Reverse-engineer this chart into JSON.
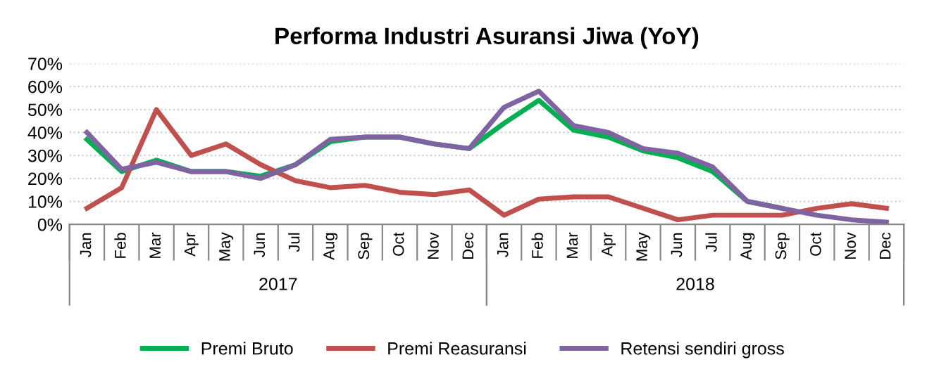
{
  "chart_data": {
    "type": "line",
    "title": "Performa Industri Asuransi Jiwa (YoY)",
    "categories": [
      "Jan",
      "Feb",
      "Mar",
      "Apr",
      "May",
      "Jun",
      "Jul",
      "Aug",
      "Sep",
      "Oct",
      "Nov",
      "Dec",
      "Jan",
      "Feb",
      "Mar",
      "Apr",
      "May",
      "Jun",
      "Jul",
      "Aug",
      "Sep",
      "Oct",
      "Nov",
      "Dec"
    ],
    "series": [
      {
        "name": "Premi Bruto",
        "color": "#00b050",
        "values": [
          37,
          23,
          28,
          23,
          23,
          21,
          26,
          36,
          38,
          38,
          35,
          33,
          44,
          54,
          41,
          38,
          32,
          29,
          23,
          10,
          7,
          null,
          null,
          null
        ]
      },
      {
        "name": "Premi Reasuransi",
        "color": "#c0504d",
        "values": [
          7,
          16,
          50,
          30,
          35,
          26,
          19,
          16,
          17,
          14,
          13,
          15,
          4,
          11,
          12,
          12,
          7,
          2,
          4,
          4,
          4,
          7,
          9,
          7
        ]
      },
      {
        "name": "Retensi sendiri gross",
        "color": "#8064a2",
        "values": [
          40,
          24,
          27,
          23,
          23,
          20,
          26,
          37,
          38,
          38,
          35,
          33,
          51,
          58,
          43,
          40,
          33,
          31,
          25,
          10,
          7,
          4,
          2,
          1
        ]
      }
    ],
    "annotations": [
      "2017",
      "2018"
    ],
    "ylim": [
      0,
      70
    ],
    "yticks": [
      {
        "value": 0,
        "label": "0%"
      },
      {
        "value": 10,
        "label": "10%"
      },
      {
        "value": 20,
        "label": "20%"
      },
      {
        "value": 30,
        "label": "30%"
      },
      {
        "value": 40,
        "label": "40%"
      },
      {
        "value": 50,
        "label": "50%"
      },
      {
        "value": 60,
        "label": "60%"
      },
      {
        "value": 70,
        "label": "70%"
      }
    ],
    "grid": "y",
    "legend": "bottom",
    "marker": "none",
    "line_style": "solid"
  }
}
